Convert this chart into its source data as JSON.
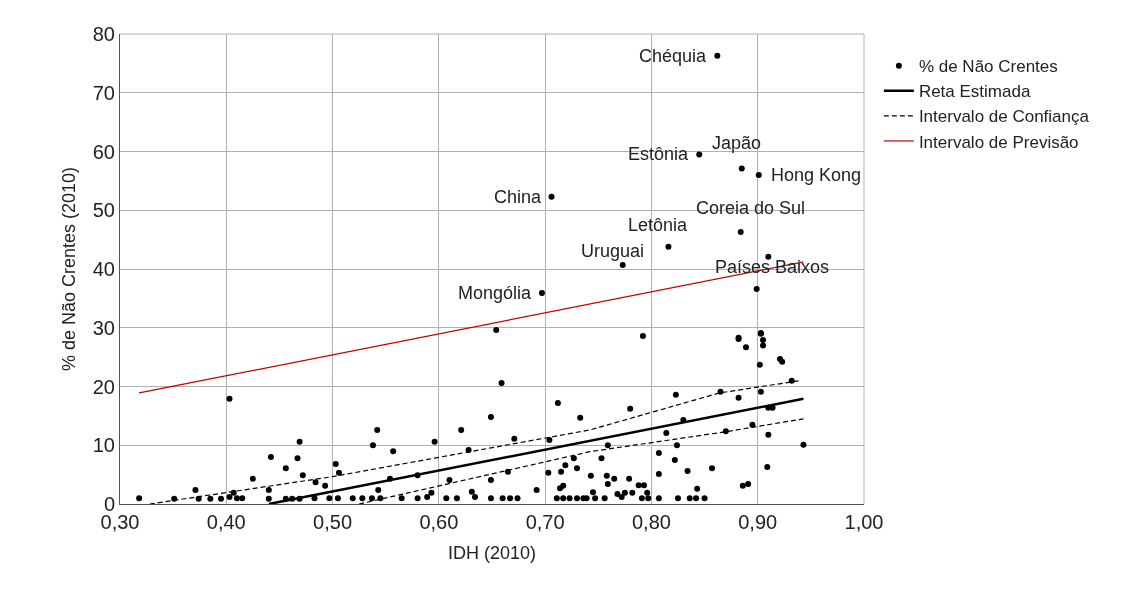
{
  "chart_data": {
    "type": "scatter",
    "xlabel": "IDH (2010)",
    "ylabel": "% de Não Crentes (2010)",
    "xlim": [
      0.3,
      1.0
    ],
    "xticks": [
      {
        "value": 0.3,
        "label": "0,30"
      },
      {
        "value": 0.4,
        "label": "0,40"
      },
      {
        "value": 0.5,
        "label": "0,50"
      },
      {
        "value": 0.6,
        "label": "0,60"
      },
      {
        "value": 0.7,
        "label": "0,70"
      },
      {
        "value": 0.8,
        "label": "0,80"
      },
      {
        "value": 0.9,
        "label": "0,90"
      },
      {
        "value": 1.0,
        "label": "1,00"
      }
    ],
    "ylim": [
      0,
      80
    ],
    "yticks": [
      0,
      10,
      20,
      30,
      40,
      50,
      60,
      70,
      80
    ],
    "grid": true,
    "legend": "right",
    "series": [
      {
        "name": "% de Não Crentes",
        "color": "#000000",
        "marker": "circle",
        "x": [
          0.862,
          0.845,
          0.885,
          0.901,
          0.706,
          0.884,
          0.816,
          0.773,
          0.91,
          0.899,
          0.697,
          0.654,
          0.792,
          0.882,
          0.903,
          0.318,
          0.403,
          0.351,
          0.371,
          0.374,
          0.385,
          0.395,
          0.403,
          0.407,
          0.41,
          0.415,
          0.425,
          0.442,
          0.44,
          0.44,
          0.456,
          0.456,
          0.467,
          0.469,
          0.472,
          0.462,
          0.469,
          0.484,
          0.493,
          0.503,
          0.506,
          0.483,
          0.497,
          0.505,
          0.519,
          0.528,
          0.537,
          0.545,
          0.538,
          0.542,
          0.543,
          0.554,
          0.557,
          0.565,
          0.58,
          0.58,
          0.589,
          0.593,
          0.596,
          0.607,
          0.617,
          0.61,
          0.621,
          0.628,
          0.631,
          0.634,
          0.649,
          0.649,
          0.649,
          0.659,
          0.671,
          0.665,
          0.66,
          0.667,
          0.674,
          0.692,
          0.704,
          0.703,
          0.712,
          0.715,
          0.719,
          0.727,
          0.73,
          0.733,
          0.714,
          0.717,
          0.711,
          0.717,
          0.723,
          0.73,
          0.736,
          0.78,
          0.823,
          0.83,
          0.814,
          0.824,
          0.865,
          0.882,
          0.903,
          0.87,
          0.895,
          0.91,
          0.914,
          0.91,
          0.943,
          0.932,
          0.921,
          0.923,
          0.902,
          0.882,
          0.889,
          0.903,
          0.905,
          0.905,
          0.909,
          0.886,
          0.891,
          0.857,
          0.834,
          0.822,
          0.807,
          0.807,
          0.843,
          0.807,
          0.825,
          0.836,
          0.842,
          0.85,
          0.759,
          0.753,
          0.743,
          0.758,
          0.765,
          0.759,
          0.779,
          0.788,
          0.793,
          0.768,
          0.772,
          0.775,
          0.782,
          0.796,
          0.739,
          0.747,
          0.756,
          0.791,
          0.797,
          0.745
        ],
        "values": [
          76.3,
          59.5,
          57.1,
          56.0,
          52.3,
          46.3,
          43.8,
          40.7,
          42.1,
          36.6,
          35.9,
          29.6,
          28.6,
          28.3,
          29.1,
          1.0,
          17.9,
          0.9,
          2.4,
          0.9,
          0.9,
          0.9,
          1.2,
          1.9,
          1.0,
          1.0,
          4.3,
          8.0,
          2.4,
          0.9,
          6.1,
          0.9,
          7.8,
          10.6,
          4.9,
          0.9,
          0.9,
          3.7,
          3.1,
          6.8,
          5.3,
          1.0,
          1.0,
          1.0,
          1.0,
          1.0,
          1.0,
          1.0,
          10.0,
          12.6,
          2.4,
          4.3,
          9.0,
          1.0,
          4.9,
          1.0,
          1.2,
          1.9,
          10.6,
          1.0,
          1.0,
          4.1,
          12.6,
          9.2,
          2.1,
          1.2,
          14.8,
          4.1,
          1.0,
          20.6,
          11.1,
          5.5,
          1.0,
          1.0,
          1.0,
          2.4,
          10.9,
          5.3,
          17.2,
          5.5,
          6.6,
          7.8,
          6.1,
          14.7,
          2.7,
          3.1,
          1.0,
          1.0,
          1.0,
          1.0,
          1.0,
          16.2,
          18.6,
          14.3,
          12.1,
          10.0,
          19.1,
          18.1,
          19.1,
          12.4,
          13.5,
          16.4,
          16.4,
          11.8,
          10.1,
          21.0,
          24.7,
          24.2,
          23.7,
          28.1,
          26.7,
          29.0,
          27.9,
          27.0,
          6.3,
          3.1,
          3.4,
          6.1,
          5.6,
          7.5,
          8.7,
          5.1,
          2.6,
          1.0,
          1.0,
          1.0,
          1.0,
          1.0,
          10.0,
          7.8,
          4.8,
          4.8,
          4.3,
          3.4,
          4.3,
          3.2,
          3.2,
          1.7,
          1.2,
          1.9,
          1.9,
          1.9,
          1.0,
          1.0,
          1.0,
          1.0,
          1.0,
          2.0
        ]
      },
      {
        "name": "Reta Estimada",
        "type": "line",
        "color": "#000000",
        "line_style": "solid",
        "x": [
          0.44,
          0.943
        ],
        "values": [
          0,
          17.9
        ]
      },
      {
        "name": "Intervalo de Confiança",
        "type": "line",
        "color": "#000000",
        "line_style": "dashed",
        "x": [
          0.328,
          0.498,
          0.742,
          0.864,
          0.94
        ],
        "values": [
          0,
          4.6,
          12.6,
          18.9,
          21.0
        ]
      },
      {
        "type": "line",
        "color": "#000000",
        "line_style": "dashed",
        "x": [
          0.525,
          0.742,
          0.87,
          0.943
        ],
        "values": [
          0,
          8.9,
          12.3,
          14.5
        ]
      },
      {
        "name": "Intervalo de Previsão",
        "type": "line",
        "color": "#c00000",
        "line_style": "solid",
        "x": [
          0.318,
          0.943
        ],
        "values": [
          18.9,
          41.2
        ]
      }
    ],
    "annotations": [
      {
        "text": "Chéquia",
        "x": 0.862,
        "y": 76.3
      },
      {
        "text": "Estônia",
        "x": 0.845,
        "y": 59.5
      },
      {
        "text": "Japão",
        "x": 0.885,
        "y": 57.1
      },
      {
        "text": "Hong Kong",
        "x": 0.901,
        "y": 56.0
      },
      {
        "text": "China",
        "x": 0.706,
        "y": 52.3
      },
      {
        "text": "Letônia",
        "x": 0.816,
        "y": 43.8
      },
      {
        "text": "Coreia do Sul",
        "x": 0.884,
        "y": 46.3
      },
      {
        "text": "Uruguai",
        "x": 0.773,
        "y": 40.7
      },
      {
        "text": "Países Baixos",
        "x": 0.899,
        "y": 36.6
      },
      {
        "text": "Mongólia",
        "x": 0.697,
        "y": 35.9
      }
    ]
  }
}
